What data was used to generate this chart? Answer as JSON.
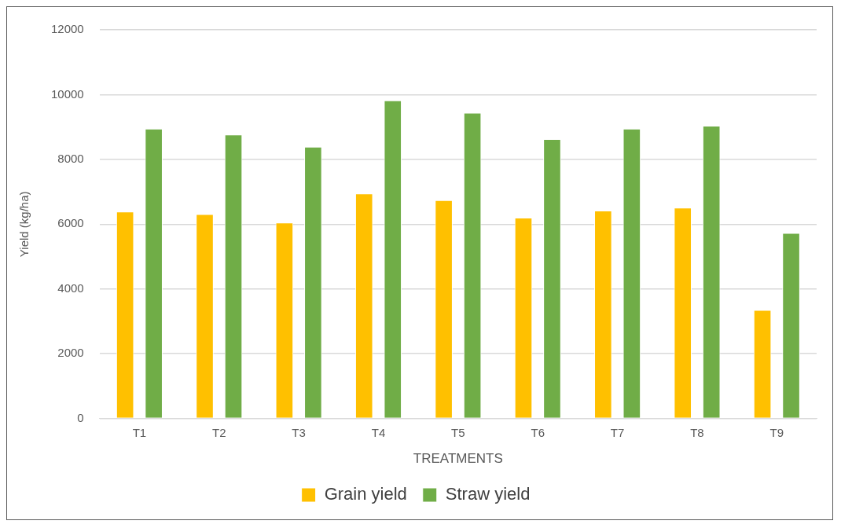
{
  "chart_data": {
    "type": "bar",
    "xlabel": "TREATMENTS",
    "ylabel": "Yield (kg/ha)",
    "categories": [
      "T1",
      "T2",
      "T3",
      "T4",
      "T5",
      "T6",
      "T7",
      "T8",
      "T9"
    ],
    "series": [
      {
        "name": "Grain yield",
        "color": "#ffc000",
        "values": [
          6390,
          6310,
          6050,
          6950,
          6740,
          6200,
          6420,
          6510,
          3350
        ]
      },
      {
        "name": "Straw yield",
        "color": "#70ad47",
        "values": [
          8950,
          8770,
          8390,
          9820,
          9440,
          8630,
          8950,
          9040,
          5730
        ]
      }
    ],
    "ylim": [
      0,
      12000
    ],
    "yticks": [
      0,
      2000,
      4000,
      6000,
      8000,
      10000,
      12000
    ],
    "grid": "y",
    "legend": "bottom"
  }
}
